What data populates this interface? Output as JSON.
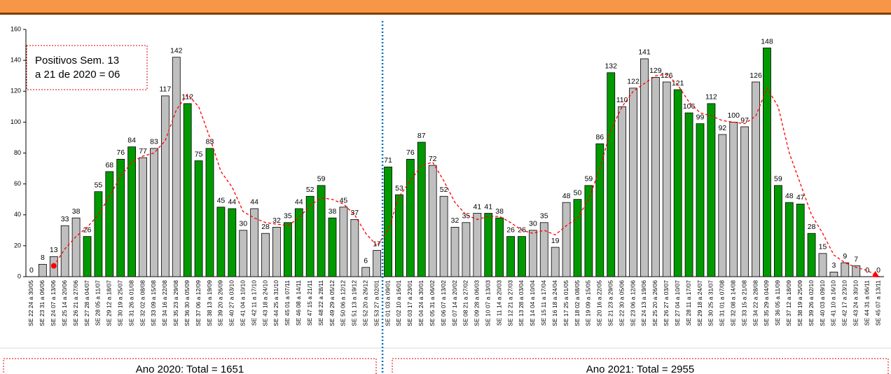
{
  "chart_data": {
    "type": "bar",
    "categories": [
      "SE 22 24 a 30/05",
      "SE 23 31 a 06/06",
      "SE 24 07 a 13/06",
      "SE 25 14 a 20/06",
      "SE 26 21 a 27/06",
      "SE 27 28 a 04/07",
      "SE 28 05 a 11/07",
      "SE 29 12 a 18/07",
      "SE 30 19 a 25/07",
      "SE 31 26 a 01/08",
      "SE 32 02 a 08/08",
      "SE 33 09 a 15/08",
      "SE 34 16 a 22/08",
      "SE 35 23 a 29/08",
      "SE 36 30 a 05/09",
      "SE 37 06 a 12/09",
      "SE 38 13 a 19/09",
      "SE 39 20 a 26/09",
      "SE 40 27 a 03/10",
      "SE 41 04 a 10/10",
      "SE 42 11 a 17/10",
      "SE 43 18 a 24/10",
      "SE 44 25 a 31/10",
      "SE 45 01 a 07/11",
      "SE 46 08 a 14/11",
      "SE 47 15 a 21/11",
      "SE 48 22 a 28/11",
      "SE 49 29 a 05/12",
      "SE 50 06 a 12/12",
      "SE 51 13 a 19/12",
      "SE 52 20 a 26/12",
      "SE 53 27 a 02/01",
      "SE 01 03 a 09/01",
      "SE 02 10 a 16/01",
      "SE 03 17 a 23/01",
      "SE 04 24 a 30/01",
      "SE 05 31 a 06/02",
      "SE 06 07 a 13/02",
      "SE 07 14 a 20/02",
      "SE 08 21 a 27/02",
      "SE 09 28 a 06/03",
      "SE 10 07 a 13/03",
      "SE 11 14 a 20/03",
      "SE 12 21 a 27/03",
      "SE 13 28 a 03/04",
      "SE 14 04 a 10/04",
      "SE 15 11 a 17/04",
      "SE 16 18 a 24/04",
      "SE 17 25 a 01/05",
      "SE 18 02 a 08/05",
      "SE 19 09 a 15/05",
      "SE 20 16 a 22/05",
      "SE 21 23 a 29/05",
      "SE 22 30 a 05/06",
      "SE 23 06 a 12/06",
      "SE 24 13 a 19/06",
      "SE 25 20 a 26/06",
      "SE 26 27 a 03/07",
      "SE 27 04 a 10/07",
      "SE 28 11 a 17/07",
      "SE 29 18 a 24/07",
      "SE 30 25 a 31/07",
      "SE 31 01 a 07/08",
      "SE 32 08 a 14/08",
      "SE 33 15 a 21/08",
      "SE 34 22 a 28/08",
      "SE 35 29 a 04/09",
      "SE 36 05 a 11/09",
      "SE 37 12 a 18/09",
      "SE 38 19 a 25/09",
      "SE 39 26 a 02/10",
      "SE 40 03 a 09/10",
      "SE 41 10 a 16/10",
      "SE 42 17 a 23/10",
      "SE 43 24 a 30/10",
      "SE 44 31 a 06/11",
      "SE 45 07 a 13/11"
    ],
    "values": [
      0,
      8,
      13,
      33,
      38,
      26,
      55,
      68,
      76,
      84,
      77,
      83,
      117,
      142,
      112,
      75,
      83,
      45,
      44,
      30,
      44,
      28,
      32,
      35,
      44,
      52,
      59,
      38,
      45,
      37,
      6,
      17,
      71,
      53,
      76,
      87,
      72,
      52,
      32,
      35,
      41,
      41,
      38,
      26,
      26,
      30,
      35,
      19,
      48,
      50,
      59,
      86,
      132,
      110,
      122,
      141,
      129,
      126,
      121,
      106,
      99,
      112,
      92,
      100,
      97,
      126,
      148,
      59,
      48,
      47,
      28,
      15,
      3,
      9,
      7,
      0,
      0
    ],
    "colors": [
      "#bfbfbf",
      "#bfbfbf",
      "#bfbfbf",
      "#bfbfbf",
      "#bfbfbf",
      "#009900",
      "#009900",
      "#009900",
      "#009900",
      "#009900",
      "#bfbfbf",
      "#bfbfbf",
      "#bfbfbf",
      "#bfbfbf",
      "#009900",
      "#009900",
      "#009900",
      "#009900",
      "#009900",
      "#bfbfbf",
      "#bfbfbf",
      "#bfbfbf",
      "#bfbfbf",
      "#009900",
      "#009900",
      "#009900",
      "#009900",
      "#009900",
      "#bfbfbf",
      "#bfbfbf",
      "#bfbfbf",
      "#bfbfbf",
      "#009900",
      "#009900",
      "#009900",
      "#009900",
      "#bfbfbf",
      "#bfbfbf",
      "#bfbfbf",
      "#bfbfbf",
      "#bfbfbf",
      "#009900",
      "#009900",
      "#009900",
      "#009900",
      "#bfbfbf",
      "#bfbfbf",
      "#bfbfbf",
      "#bfbfbf",
      "#009900",
      "#009900",
      "#009900",
      "#009900",
      "#bfbfbf",
      "#bfbfbf",
      "#bfbfbf",
      "#bfbfbf",
      "#bfbfbf",
      "#009900",
      "#009900",
      "#009900",
      "#009900",
      "#bfbfbf",
      "#bfbfbf",
      "#bfbfbf",
      "#bfbfbf",
      "#009900",
      "#009900",
      "#009900",
      "#009900",
      "#009900",
      "#bfbfbf",
      "#bfbfbf",
      "#bfbfbf",
      "#bfbfbf",
      "#bfbfbf",
      "#bfbfbf"
    ],
    "line": {
      "color": "#ff0000",
      "values": [
        null,
        null,
        7,
        18,
        26,
        32,
        40,
        52,
        65,
        74,
        78,
        80,
        88,
        108,
        118,
        110,
        90,
        68,
        58,
        42,
        38,
        35,
        34,
        33,
        38,
        46,
        51,
        50,
        47,
        40,
        28,
        20,
        30,
        52,
        62,
        72,
        74,
        62,
        48,
        40,
        37,
        39,
        39,
        35,
        30,
        28,
        30,
        27,
        33,
        38,
        50,
        70,
        95,
        110,
        120,
        125,
        130,
        131,
        124,
        113,
        106,
        104,
        101,
        100,
        99,
        104,
        122,
        110,
        80,
        60,
        40,
        28,
        14,
        9,
        6,
        4,
        0
      ]
    },
    "ylim": [
      0,
      160
    ],
    "yticks": [
      0,
      20,
      40,
      60,
      80,
      100,
      120,
      140,
      160
    ],
    "annotations": [
      "Positivos Sem. 13",
      "a 21 de 2020 = 06",
      "Ano 2020:  Total = 1651",
      "Ano 2021:  Total = 2955"
    ]
  }
}
